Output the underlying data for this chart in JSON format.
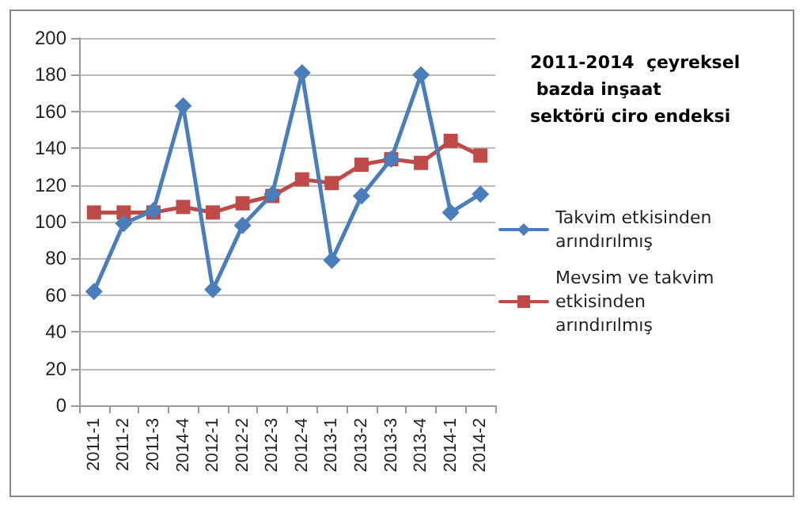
{
  "chart_data": {
    "type": "line",
    "title": "2011-2014  çeyreksel bazda inşaat sektörü ciro endeksi",
    "categories": [
      "2011-1",
      "2011-2",
      "2011-3",
      "2014-4",
      "2012-1",
      "2012-2",
      "2012-3",
      "2012-4",
      "2013-1",
      "2013-2",
      "2013-3",
      "2013-4",
      "2014-1",
      "2014-2"
    ],
    "series": [
      {
        "name": "Takvim etkisinden arındırılmış",
        "color": "#4a7ebb",
        "marker": "diamond",
        "values": [
          62,
          99,
          106,
          163,
          63,
          98,
          115,
          181,
          79,
          114,
          134,
          180,
          105,
          115
        ]
      },
      {
        "name": "Mevsim ve takvim etkisinden arındırılmış",
        "color": "#be4b48",
        "marker": "square",
        "values": [
          105,
          105,
          105,
          108,
          105,
          110,
          114,
          123,
          121,
          131,
          134,
          132,
          144,
          136
        ]
      }
    ],
    "ylim": [
      0,
      200
    ],
    "yticks": [
      0,
      20,
      40,
      60,
      80,
      100,
      120,
      140,
      160,
      180,
      200
    ],
    "grid": "y",
    "legend": "right",
    "line_style": "solid"
  }
}
